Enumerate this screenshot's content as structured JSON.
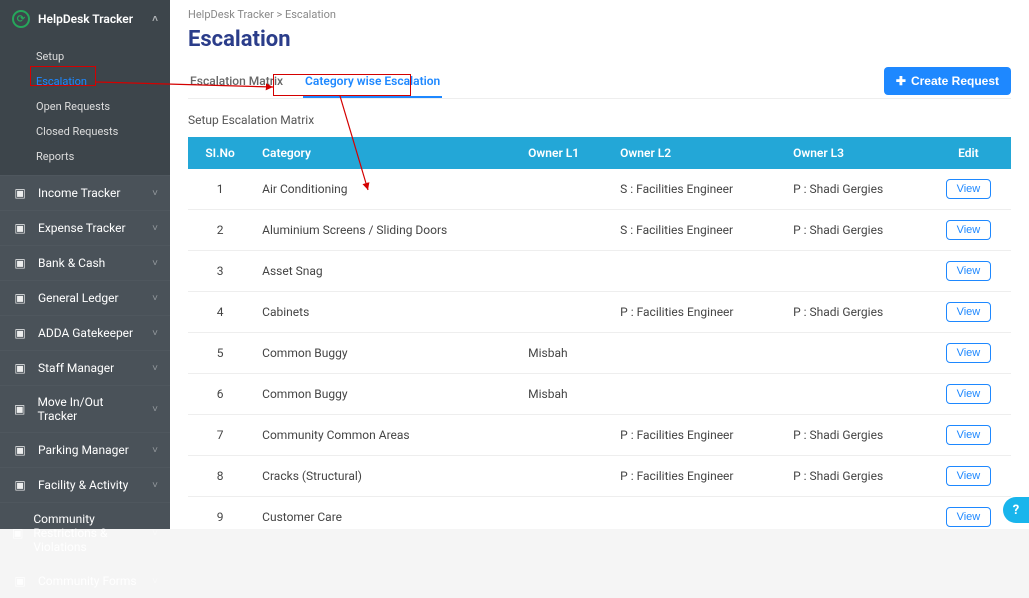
{
  "sidebar": {
    "active_module": "HelpDesk Tracker",
    "sub_items": [
      {
        "label": "Setup",
        "active": false
      },
      {
        "label": "Escalation",
        "active": true
      },
      {
        "label": "Open Requests",
        "active": false
      },
      {
        "label": "Closed Requests",
        "active": false
      },
      {
        "label": "Reports",
        "active": false
      }
    ],
    "modules": [
      {
        "label": "Income Tracker",
        "icon": "income-icon"
      },
      {
        "label": "Expense Tracker",
        "icon": "expense-icon"
      },
      {
        "label": "Bank & Cash",
        "icon": "bank-icon"
      },
      {
        "label": "General Ledger",
        "icon": "ledger-icon"
      },
      {
        "label": "ADDA Gatekeeper",
        "icon": "gatekeeper-icon"
      },
      {
        "label": "Staff Manager",
        "icon": "staff-icon"
      },
      {
        "label": "Move In/Out Tracker",
        "icon": "move-icon"
      },
      {
        "label": "Parking Manager",
        "icon": "parking-icon"
      },
      {
        "label": "Facility & Activity",
        "icon": "facility-icon"
      },
      {
        "label": "Community Restrictions & Violations",
        "icon": "violations-icon"
      },
      {
        "label": "Community Forms",
        "icon": "forms-icon"
      }
    ]
  },
  "breadcrumb": "HelpDesk Tracker  >  Escalation",
  "page_title": "Escalation",
  "tabs": [
    {
      "label": "Escalation Matrix",
      "active": false
    },
    {
      "label": "Category wise Escalation",
      "active": true
    }
  ],
  "subtitle": "Setup Escalation Matrix",
  "create_button": "Create Request",
  "table": {
    "header_bg": "#23a7d7",
    "columns": [
      "SI.No",
      "Category",
      "Owner L1",
      "Owner L2",
      "Owner L3",
      "Edit"
    ],
    "view_label": "View",
    "rows": [
      {
        "n": "1",
        "cat": "Air Conditioning",
        "l1": "",
        "l2": "S : Facilities Engineer",
        "l3": "P : Shadi Gergies"
      },
      {
        "n": "2",
        "cat": "Aluminium Screens / Sliding Doors",
        "l1": "",
        "l2": "S : Facilities Engineer",
        "l3": "P : Shadi Gergies"
      },
      {
        "n": "3",
        "cat": "Asset Snag",
        "l1": "",
        "l2": "",
        "l3": ""
      },
      {
        "n": "4",
        "cat": "Cabinets",
        "l1": "",
        "l2": "P : Facilities Engineer",
        "l3": "P : Shadi Gergies"
      },
      {
        "n": "5",
        "cat": "Common Buggy",
        "l1": "Misbah",
        "l2": "",
        "l3": ""
      },
      {
        "n": "6",
        "cat": "Common Buggy",
        "l1": "Misbah",
        "l2": "",
        "l3": ""
      },
      {
        "n": "7",
        "cat": "Community Common Areas",
        "l1": "",
        "l2": "P : Facilities Engineer",
        "l3": "P : Shadi Gergies"
      },
      {
        "n": "8",
        "cat": "Cracks (Structural)",
        "l1": "",
        "l2": "P : Facilities Engineer",
        "l3": "P : Shadi Gergies"
      },
      {
        "n": "9",
        "cat": "Customer Care",
        "l1": "",
        "l2": "",
        "l3": ""
      }
    ]
  },
  "colors": {
    "accent": "#1e88ff",
    "sidebar_bg": "#4a5259",
    "annot": "#d40000"
  }
}
